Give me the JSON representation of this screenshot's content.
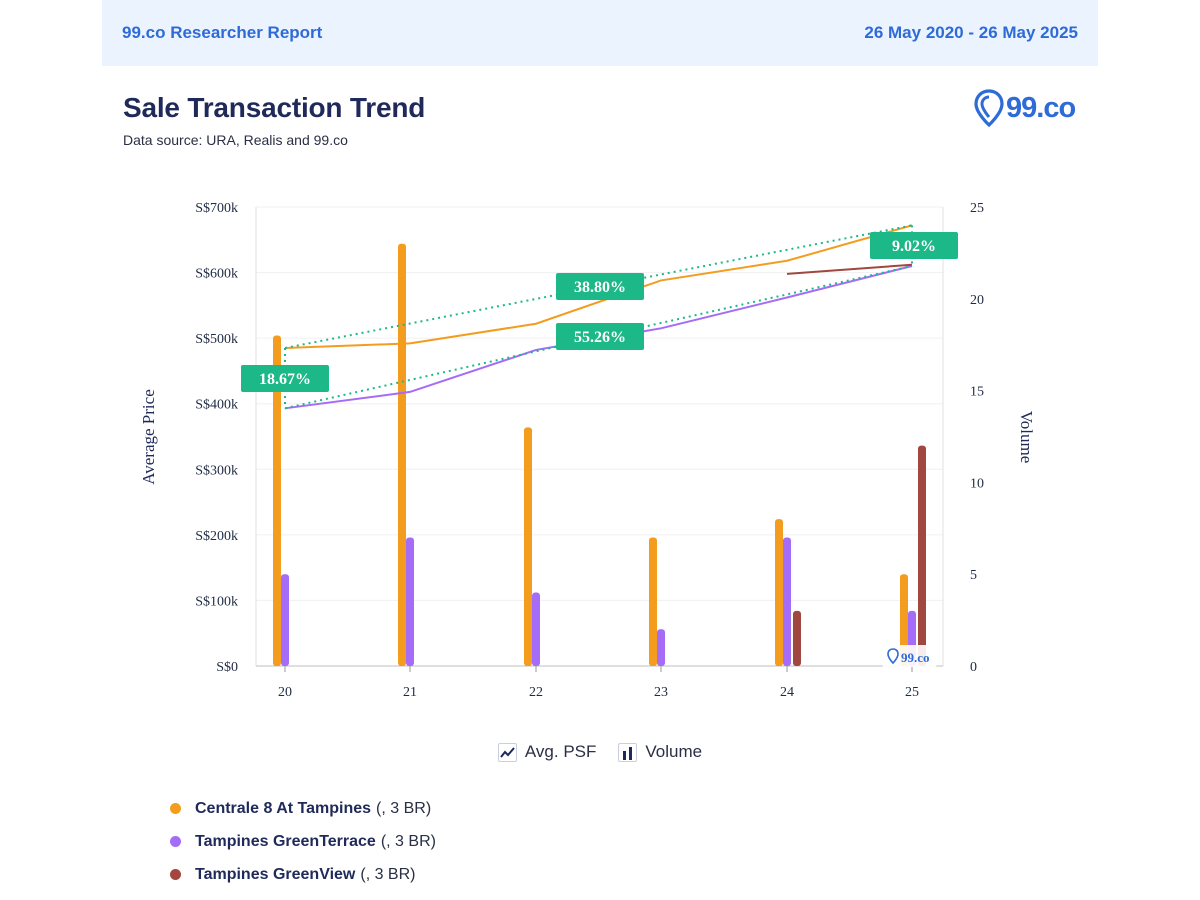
{
  "header": {
    "report_title": "99.co Researcher Report",
    "date_range": "26 May 2020 - 26 May 2025"
  },
  "title": "Sale Transaction Trend",
  "subtitle": "Data source: URA, Realis and 99.co",
  "brand": {
    "logo_text": "99.co",
    "watermark_text": "99.co",
    "color": "#2e6bd6"
  },
  "legend_types": [
    {
      "label": "Avg. PSF",
      "icon": "line-chart-icon"
    },
    {
      "label": "Volume",
      "icon": "bar-chart-icon"
    }
  ],
  "chart_data": {
    "type": "bar+line",
    "categories": [
      "20",
      "21",
      "22",
      "23",
      "24",
      "25"
    ],
    "y_left": {
      "label": "Average Price",
      "ticks": [
        "S$0",
        "S$100k",
        "S$200k",
        "S$300k",
        "S$400k",
        "S$500k",
        "S$600k",
        "S$700k"
      ],
      "range": [
        0,
        700000
      ]
    },
    "y_right": {
      "label": "Volume",
      "ticks": [
        "0",
        "5",
        "10",
        "15",
        "20",
        "25"
      ],
      "range": [
        0,
        25
      ]
    },
    "series": [
      {
        "name": "Centrale 8 At Tampines",
        "suffix": "(, 3 BR)",
        "color": "#f39c1e",
        "volume": [
          18,
          23,
          13,
          7,
          8,
          5
        ],
        "avg_price": [
          485000,
          492000,
          522000,
          588000,
          618000,
          672000
        ]
      },
      {
        "name": "Tampines GreenTerrace",
        "suffix": "(, 3 BR)",
        "color": "#a56cf7",
        "volume": [
          5,
          7,
          4,
          2,
          7,
          3
        ],
        "avg_price": [
          393000,
          418000,
          482000,
          515000,
          562000,
          610000
        ]
      },
      {
        "name": "Tampines GreenView",
        "suffix": "(, 3 BR)",
        "color": "#a0473f",
        "volume": [
          0,
          0,
          0,
          0,
          3,
          12
        ],
        "avg_price": [
          null,
          null,
          null,
          null,
          598000,
          612000
        ]
      }
    ],
    "annotations": [
      {
        "label": "18.67%",
        "color": "#1db887"
      },
      {
        "label": "38.80%",
        "color": "#1db887"
      },
      {
        "label": "55.26%",
        "color": "#1db887"
      },
      {
        "label": "9.02%",
        "color": "#1db887"
      }
    ],
    "grid": true
  }
}
